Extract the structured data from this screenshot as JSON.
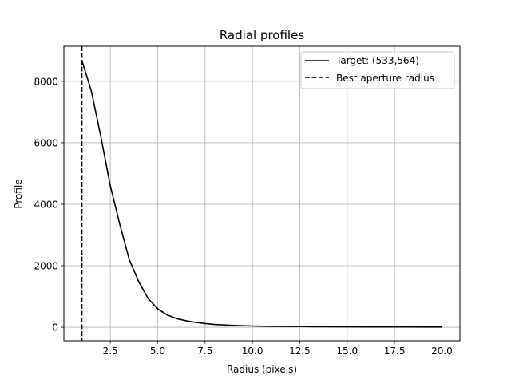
{
  "chart_data": {
    "type": "line",
    "title": "Radial profiles",
    "xlabel": "Radius (pixels)",
    "ylabel": "Profile",
    "xlim": [
      0.05,
      20.95
    ],
    "ylim": [
      -440,
      9140
    ],
    "xticks": [
      2.5,
      5.0,
      7.5,
      10.0,
      12.5,
      15.0,
      17.5,
      20.0
    ],
    "xtick_labels": [
      "2.5",
      "5.0",
      "7.5",
      "10.0",
      "12.5",
      "15.0",
      "17.5",
      "20.0"
    ],
    "yticks": [
      0,
      2000,
      4000,
      6000,
      8000
    ],
    "ytick_labels": [
      "0",
      "2000",
      "4000",
      "6000",
      "8000"
    ],
    "grid": true,
    "legend_position": "top-right",
    "series": [
      {
        "name": "Target: (533,564)",
        "style": "solid",
        "color": "#000000",
        "x": [
          1.0,
          1.5,
          2.0,
          2.5,
          3.0,
          3.5,
          4.0,
          4.5,
          5.0,
          5.5,
          6.0,
          6.5,
          7.0,
          7.5,
          8.0,
          9.0,
          10.0,
          11.0,
          12.0,
          13.0,
          14.0,
          15.0,
          16.0,
          17.0,
          18.0,
          19.0,
          20.0
        ],
        "y": [
          8680,
          7680,
          6200,
          4600,
          3350,
          2200,
          1480,
          930,
          600,
          400,
          280,
          210,
          160,
          120,
          90,
          60,
          40,
          30,
          25,
          20,
          15,
          12,
          10,
          9,
          8,
          7,
          5
        ]
      }
    ],
    "vlines": [
      {
        "name": "Best aperture radius",
        "x": 1.0,
        "style": "dashed",
        "color": "#000000"
      }
    ]
  }
}
